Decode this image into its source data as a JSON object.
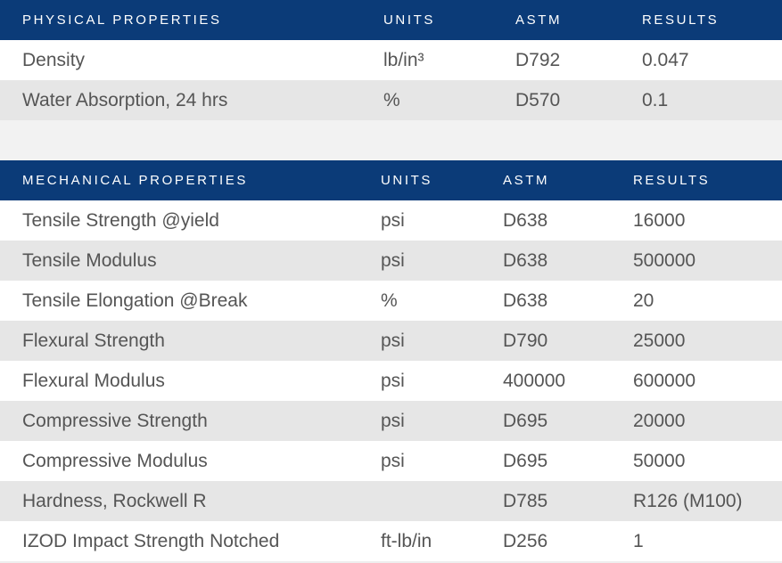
{
  "physical": {
    "headers": [
      "PHYSICAL PROPERTIES",
      "UNITS",
      "ASTM",
      "RESULTS"
    ],
    "rows": [
      [
        "Density",
        "lb/in³",
        "D792",
        "0.047"
      ],
      [
        "Water Absorption, 24 hrs",
        "%",
        "D570",
        "0.1"
      ]
    ]
  },
  "mechanical": {
    "headers": [
      "MECHANICAL PROPERTIES",
      "UNITS",
      "ASTM",
      "RESULTS"
    ],
    "rows": [
      [
        "Tensile Strength @yield",
        "psi",
        "D638",
        "16000"
      ],
      [
        "Tensile Modulus",
        "psi",
        "D638",
        "500000"
      ],
      [
        "Tensile Elongation @Break",
        "%",
        "D638",
        "20"
      ],
      [
        "Flexural Strength",
        "psi",
        "D790",
        "25000"
      ],
      [
        "Flexural Modulus",
        "psi",
        "400000",
        "600000"
      ],
      [
        "Compressive Strength",
        "psi",
        "D695",
        "20000"
      ],
      [
        "Compressive Modulus",
        "psi",
        "D695",
        "50000"
      ],
      [
        "Hardness, Rockwell R",
        "",
        "D785",
        "R126 (M100)"
      ],
      [
        "IZOD Impact Strength Notched",
        "ft-lb/in",
        "D256",
        "1"
      ]
    ]
  },
  "colors": {
    "header_bg": "#0b3b78",
    "row_alt_bg": "#e6e6e6",
    "spacer_bg": "#f2f2f2"
  }
}
